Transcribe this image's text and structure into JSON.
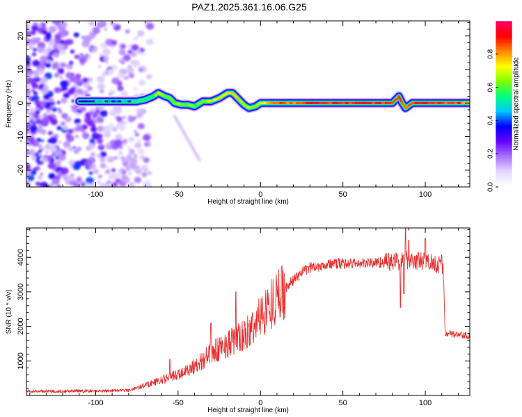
{
  "title": "PAZ1.2025.361.16.06.G25",
  "chart_data": [
    {
      "type": "heatmap",
      "xlabel": "Height of straight line (km)",
      "ylabel": "Frequency (Hz)",
      "xlim": [
        -142,
        127
      ],
      "ylim": [
        -25,
        24.5
      ],
      "xticks": [
        -100,
        -50,
        0,
        50,
        100
      ],
      "yticks": [
        -20,
        -10,
        0,
        10,
        20
      ],
      "colorbar": {
        "label": "Normalized spectral amplitude",
        "ticks": [
          0.0,
          0.2,
          0.4,
          0.6,
          0.8
        ],
        "tick_labels": [
          "0.0",
          "0.2",
          "0.4",
          "0.6",
          "0.8"
        ],
        "range": [
          0,
          1
        ],
        "colormap": [
          "#ffffff",
          "#e3d6ff",
          "#a770ff",
          "#6600ff",
          "#0000ff",
          "#00c8ff",
          "#00ff80",
          "#7fff00",
          "#ffff00",
          "#ff8800",
          "#ff0000",
          "#ff0066"
        ]
      },
      "ridge": [
        [
          -110,
          0.5,
          0.35
        ],
        [
          -100,
          0.5,
          0.45
        ],
        [
          -90,
          0.5,
          0.4
        ],
        [
          -80,
          0.5,
          0.45
        ],
        [
          -75,
          0.5,
          0.5
        ],
        [
          -70,
          1.0,
          0.55
        ],
        [
          -65,
          2.0,
          0.6
        ],
        [
          -62,
          3.0,
          0.7
        ],
        [
          -58,
          2.0,
          0.65
        ],
        [
          -55,
          1.5,
          0.6
        ],
        [
          -52,
          0.0,
          0.7
        ],
        [
          -48,
          -0.5,
          0.6
        ],
        [
          -44,
          -0.5,
          0.65
        ],
        [
          -40,
          -1.0,
          0.6
        ],
        [
          -35,
          0.5,
          0.65
        ],
        [
          -30,
          0.5,
          0.7
        ],
        [
          -25,
          1.5,
          0.7
        ],
        [
          -20,
          3.0,
          0.75
        ],
        [
          -17,
          3.0,
          0.8
        ],
        [
          -15,
          2.0,
          0.75
        ],
        [
          -12,
          0.5,
          0.7
        ],
        [
          -10,
          -0.5,
          0.7
        ],
        [
          -7,
          -1.5,
          0.65
        ],
        [
          -3,
          -1.0,
          0.7
        ],
        [
          0,
          0.0,
          0.75
        ],
        [
          10,
          0.0,
          0.85
        ],
        [
          20,
          0.0,
          0.85
        ],
        [
          30,
          0.0,
          0.9
        ],
        [
          40,
          0.0,
          0.9
        ],
        [
          50,
          0.0,
          0.9
        ],
        [
          60,
          0.0,
          0.9
        ],
        [
          70,
          0.0,
          0.9
        ],
        [
          80,
          0.0,
          0.9
        ],
        [
          84,
          2.0,
          0.85
        ],
        [
          86,
          0.0,
          0.8
        ],
        [
          88,
          -1.5,
          0.8
        ],
        [
          92,
          0.0,
          0.9
        ],
        [
          100,
          0.0,
          0.9
        ],
        [
          110,
          0.0,
          0.9
        ],
        [
          120,
          0.0,
          0.85
        ],
        [
          127,
          0.0,
          0.8
        ]
      ]
    },
    {
      "type": "line",
      "xlabel": "Height of straight line (km)",
      "ylabel": "SNR (10 * v/v)",
      "xlim": [
        -142,
        127
      ],
      "ylim": [
        0,
        4850
      ],
      "xticks": [
        -100,
        -50,
        0,
        50,
        100
      ],
      "yticks": [
        1000,
        2000,
        3000,
        4000
      ],
      "series_color": "#e83030",
      "envelope": [
        [
          -142,
          120
        ],
        [
          -100,
          130
        ],
        [
          -80,
          150
        ],
        [
          -75,
          220
        ],
        [
          -70,
          300
        ],
        [
          -60,
          450
        ],
        [
          -50,
          600
        ],
        [
          -40,
          850
        ],
        [
          -30,
          1200
        ],
        [
          -20,
          1500
        ],
        [
          -15,
          1600
        ],
        [
          -10,
          1700
        ],
        [
          -5,
          1950
        ],
        [
          0,
          2300
        ],
        [
          5,
          2600
        ],
        [
          10,
          2850
        ],
        [
          15,
          3100
        ],
        [
          20,
          3350
        ],
        [
          25,
          3550
        ],
        [
          30,
          3700
        ],
        [
          40,
          3800
        ],
        [
          50,
          3820
        ],
        [
          60,
          3820
        ],
        [
          70,
          3850
        ],
        [
          80,
          3860
        ],
        [
          85,
          3900
        ],
        [
          88,
          3950
        ],
        [
          95,
          3900
        ],
        [
          105,
          3850
        ],
        [
          110,
          3800
        ],
        [
          111,
          3600
        ],
        [
          112,
          1800
        ],
        [
          115,
          1780
        ],
        [
          127,
          1700
        ]
      ],
      "spikes": [
        [
          -15,
          3000
        ],
        [
          -30,
          2100
        ],
        [
          -55,
          1050
        ],
        [
          85,
          2550
        ],
        [
          87,
          2950
        ],
        [
          88,
          4850
        ],
        [
          90,
          4500
        ],
        [
          100,
          4550
        ]
      ]
    }
  ]
}
